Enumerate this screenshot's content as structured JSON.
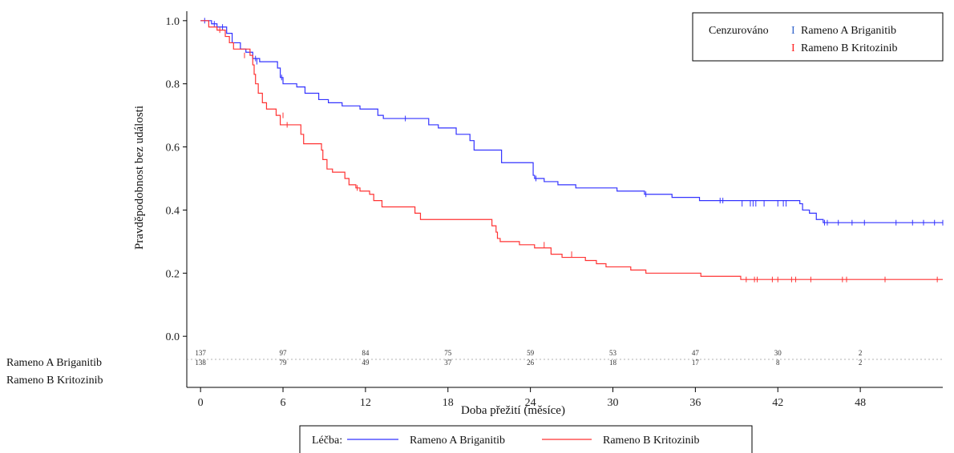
{
  "chart_data": {
    "type": "line",
    "ylabel": "Pravděpodobnost bez události",
    "xlabel": "Doba přežití (měsíce)",
    "xlim": [
      -1,
      54
    ],
    "ylim": [
      -0.03,
      1.03
    ],
    "xticks": [
      0,
      6,
      12,
      18,
      24,
      30,
      36,
      42,
      48
    ],
    "yticks": [
      0.0,
      0.2,
      0.4,
      0.6,
      0.8,
      1.0
    ],
    "ytick_labels": [
      "0.0",
      "0.2",
      "0.4",
      "0.6",
      "0.8",
      "1.0"
    ],
    "censor_legend": {
      "label": "Cenzurováno",
      "symbol": "I",
      "entries": [
        "Rameno A Briganitib",
        "Rameno B Kritozinib"
      ]
    },
    "treatment_legend": {
      "label": "Léčba:",
      "entries": [
        "Rameno A Briganitib",
        "Rameno B Kritozinib"
      ]
    },
    "series": [
      {
        "name": "Rameno A Briganitib",
        "color": "#3333ff",
        "steps": [
          [
            0,
            1.0
          ],
          [
            0.8,
            0.99
          ],
          [
            1.2,
            0.98
          ],
          [
            1.9,
            0.96
          ],
          [
            2.3,
            0.93
          ],
          [
            2.9,
            0.91
          ],
          [
            3.3,
            0.9
          ],
          [
            3.8,
            0.88
          ],
          [
            4.3,
            0.87
          ],
          [
            5.6,
            0.85
          ],
          [
            5.8,
            0.82
          ],
          [
            6.0,
            0.8
          ],
          [
            7.0,
            0.79
          ],
          [
            7.6,
            0.77
          ],
          [
            8.6,
            0.75
          ],
          [
            9.3,
            0.74
          ],
          [
            10.3,
            0.73
          ],
          [
            11.6,
            0.72
          ],
          [
            12.9,
            0.7
          ],
          [
            13.3,
            0.69
          ],
          [
            16.6,
            0.67
          ],
          [
            17.3,
            0.66
          ],
          [
            18.6,
            0.64
          ],
          [
            19.6,
            0.62
          ],
          [
            19.9,
            0.59
          ],
          [
            21.9,
            0.55
          ],
          [
            24.2,
            0.51
          ],
          [
            24.3,
            0.5
          ],
          [
            25.0,
            0.49
          ],
          [
            26.0,
            0.48
          ],
          [
            27.3,
            0.47
          ],
          [
            30.3,
            0.46
          ],
          [
            32.3,
            0.45
          ],
          [
            34.3,
            0.44
          ],
          [
            36.3,
            0.43
          ],
          [
            43.6,
            0.42
          ],
          [
            43.8,
            0.4
          ],
          [
            44.3,
            0.39
          ],
          [
            44.8,
            0.37
          ],
          [
            45.3,
            0.36
          ],
          [
            54.0,
            0.36
          ]
        ],
        "censored": [
          [
            0.3,
            1.0
          ],
          [
            0.6,
            0.99
          ],
          [
            1.0,
            0.99
          ],
          [
            1.6,
            0.98
          ],
          [
            4.0,
            0.88
          ],
          [
            4.1,
            0.87
          ],
          [
            5.9,
            0.82
          ],
          [
            14.9,
            0.69
          ],
          [
            24.4,
            0.5
          ],
          [
            32.4,
            0.45
          ],
          [
            37.8,
            0.43
          ],
          [
            38.0,
            0.43
          ],
          [
            39.4,
            0.42
          ],
          [
            40.0,
            0.42
          ],
          [
            40.2,
            0.42
          ],
          [
            40.4,
            0.42
          ],
          [
            41.0,
            0.42
          ],
          [
            42.0,
            0.42
          ],
          [
            42.4,
            0.42
          ],
          [
            42.6,
            0.42
          ],
          [
            45.4,
            0.36
          ],
          [
            45.6,
            0.36
          ],
          [
            46.4,
            0.36
          ],
          [
            47.4,
            0.36
          ],
          [
            48.3,
            0.36
          ],
          [
            50.6,
            0.36
          ],
          [
            51.8,
            0.36
          ],
          [
            52.6,
            0.36
          ],
          [
            53.4,
            0.36
          ],
          [
            54.0,
            0.36
          ]
        ]
      },
      {
        "name": "Rameno B Kritozinib",
        "color": "#ff3333",
        "steps": [
          [
            0,
            1.0
          ],
          [
            0.6,
            0.98
          ],
          [
            1.2,
            0.97
          ],
          [
            1.8,
            0.95
          ],
          [
            2.1,
            0.93
          ],
          [
            2.4,
            0.91
          ],
          [
            3.6,
            0.89
          ],
          [
            3.8,
            0.86
          ],
          [
            3.9,
            0.83
          ],
          [
            4.0,
            0.8
          ],
          [
            4.2,
            0.77
          ],
          [
            4.5,
            0.74
          ],
          [
            4.8,
            0.72
          ],
          [
            5.5,
            0.7
          ],
          [
            5.8,
            0.67
          ],
          [
            7.3,
            0.64
          ],
          [
            7.5,
            0.61
          ],
          [
            8.8,
            0.59
          ],
          [
            8.9,
            0.56
          ],
          [
            9.2,
            0.53
          ],
          [
            9.6,
            0.52
          ],
          [
            10.5,
            0.5
          ],
          [
            10.8,
            0.48
          ],
          [
            11.3,
            0.47
          ],
          [
            11.6,
            0.46
          ],
          [
            12.3,
            0.45
          ],
          [
            12.6,
            0.43
          ],
          [
            13.2,
            0.41
          ],
          [
            15.6,
            0.39
          ],
          [
            16.0,
            0.37
          ],
          [
            21.2,
            0.35
          ],
          [
            21.5,
            0.33
          ],
          [
            21.6,
            0.31
          ],
          [
            21.8,
            0.3
          ],
          [
            23.2,
            0.29
          ],
          [
            24.3,
            0.28
          ],
          [
            25.5,
            0.26
          ],
          [
            26.3,
            0.25
          ],
          [
            28.0,
            0.24
          ],
          [
            28.8,
            0.23
          ],
          [
            29.5,
            0.22
          ],
          [
            31.3,
            0.21
          ],
          [
            32.4,
            0.2
          ],
          [
            36.4,
            0.19
          ],
          [
            39.3,
            0.18
          ],
          [
            54.0,
            0.18
          ]
        ],
        "censored": [
          [
            1.4,
            0.97
          ],
          [
            3.2,
            0.89
          ],
          [
            6.0,
            0.7
          ],
          [
            6.3,
            0.67
          ],
          [
            11.4,
            0.47
          ],
          [
            25.0,
            0.29
          ],
          [
            27.0,
            0.26
          ],
          [
            39.7,
            0.18
          ],
          [
            40.3,
            0.18
          ],
          [
            40.5,
            0.18
          ],
          [
            41.6,
            0.18
          ],
          [
            42.0,
            0.18
          ],
          [
            43.0,
            0.18
          ],
          [
            43.3,
            0.18
          ],
          [
            44.4,
            0.18
          ],
          [
            46.7,
            0.18
          ],
          [
            47.0,
            0.18
          ],
          [
            49.8,
            0.18
          ],
          [
            53.6,
            0.18
          ]
        ]
      }
    ],
    "risk_table": {
      "times": [
        0,
        6,
        12,
        18,
        24,
        30,
        36,
        42,
        48
      ],
      "rows": [
        {
          "label": "Rameno A Briganitib",
          "values": [
            "137",
            "97",
            "84",
            "75",
            "59",
            "53",
            "47",
            "30",
            "2"
          ]
        },
        {
          "label": "Rameno B Kritozinib",
          "values": [
            "138",
            "79",
            "49",
            "37",
            "26",
            "18",
            "17",
            "8",
            "2"
          ]
        }
      ]
    }
  }
}
